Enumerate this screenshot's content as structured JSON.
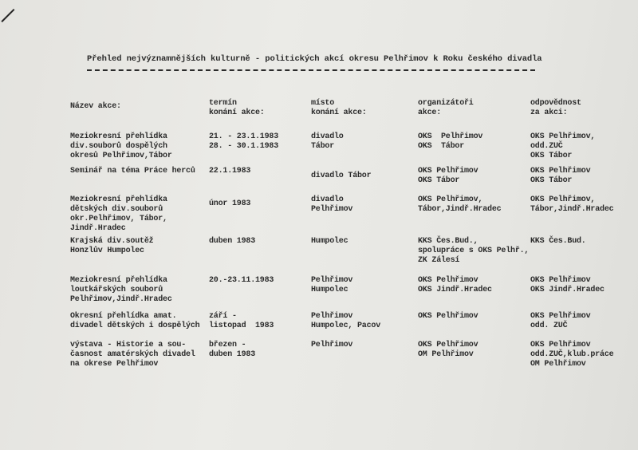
{
  "document": {
    "title": "Přehled nejvýznamnějších kulturně - politických akcí okresu Pelhřimov k Roku českého divadla",
    "columns": [
      "Název akce:",
      "termín\nkonání akce:",
      "místo\nkonání akce:",
      "organizátoři\nakce:",
      "odpovědnost\nza akci:"
    ],
    "rows": [
      [
        "Meziokresní přehlídka\ndiv.souborů dospělých\nokresů Pelhřimov,Tábor",
        "21. - 23.1.1983\n28. - 30.1.1983",
        "divadlo\nTábor",
        "OKS  Pelhřimov\nOKS  Tábor",
        "OKS Pelhřimov,\nodd.ZUČ\nOKS Tábor"
      ],
      [
        "Seminář na téma Práce herců",
        "22.1.1983",
        "divadlo Tábor",
        "OKS Pelhřimov\nOKS Tábor",
        "OKS Pelhřimov\nOKS Tábor"
      ],
      [
        "Meziokresní přehlídka\ndětských div.souborů\nokr.Pelhřimov, Tábor,\nJindř.Hradec",
        "únor 1983",
        "divadlo\nPelhřimov",
        "OKS Pelhřimov,\nTábor,Jindř.Hradec",
        "OKS Pelhřimov,\nTábor,Jindř.Hradec"
      ],
      [
        "Krajská div.soutěž\nHonzlův Humpolec",
        "duben 1983",
        "Humpolec",
        "KKS Čes.Bud.,\nspolupráce s OKS Pelhř.,\nZK Zálesí",
        "KKS Čes.Bud."
      ],
      [
        "Meziokresní přehlídka\nloutkářských souborů\nPelhřimov,Jindř.Hradec",
        "20.-23.11.1983",
        "Pelhřimov\nHumpolec",
        "OKS Pelhřimov\nOKS Jindř.Hradec",
        "OKS Pelhřimov\nOKS Jindř.Hradec"
      ],
      [
        "Okresní přehlídka amat.\ndivadel dětských i dospělých",
        "září -\nlistopad  1983",
        "Pelhřimov\nHumpolec, Pacov",
        "OKS Pelhřimov",
        "OKS Pelhřimov\nodd. ZUČ"
      ],
      [
        "výstava - Historie a sou-\nčasnost amatérských divadel\nna okrese Pelhřimov",
        "březen -\nduben 1983",
        "Pelhřimov",
        "OKS Pelhřimov\nOM Pelhřimov",
        "OKS Pelhřimov\nodd.ZUČ,klub.práce\nOM Pelhřimov"
      ]
    ]
  }
}
